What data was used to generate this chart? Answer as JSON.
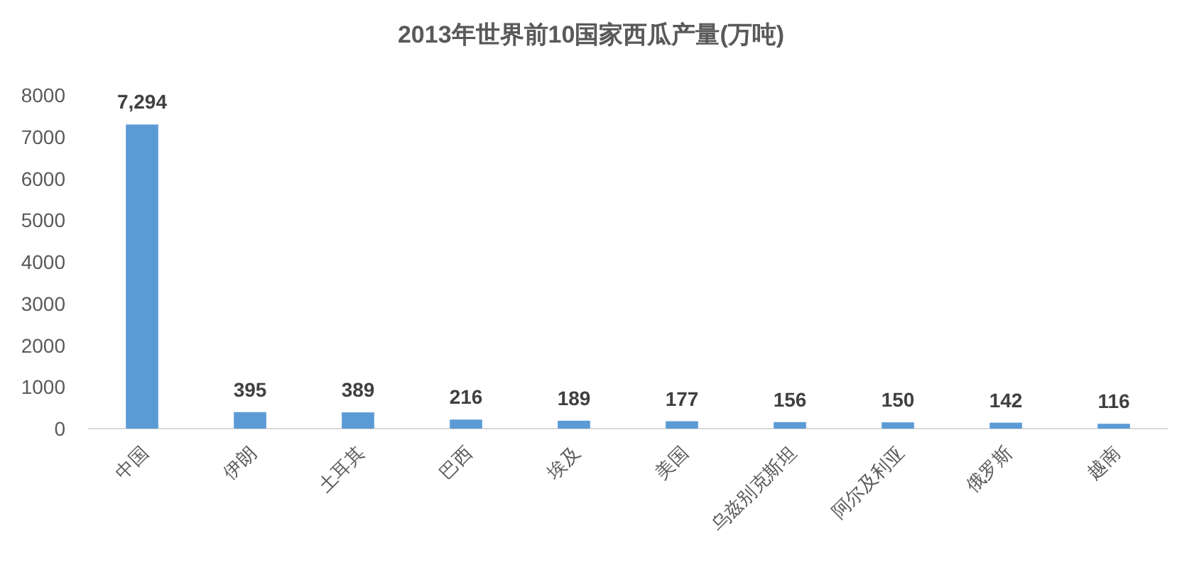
{
  "chart_data": {
    "type": "bar",
    "title": "2013年世界前10国家西瓜产量(万吨)",
    "categories": [
      "中国",
      "伊朗",
      "土耳其",
      "巴西",
      "埃及",
      "美国",
      "乌兹别克斯坦",
      "阿尔及利亚",
      "俄罗斯",
      "越南"
    ],
    "values": [
      7294,
      395,
      389,
      216,
      189,
      177,
      156,
      150,
      142,
      116
    ],
    "value_labels": [
      "7,294",
      "395",
      "389",
      "216",
      "189",
      "177",
      "156",
      "150",
      "142",
      "116"
    ],
    "color": "#5b9bd5",
    "ylim": [
      0,
      8000
    ],
    "yticks": [
      0,
      1000,
      2000,
      3000,
      4000,
      5000,
      6000,
      7000,
      8000
    ]
  }
}
